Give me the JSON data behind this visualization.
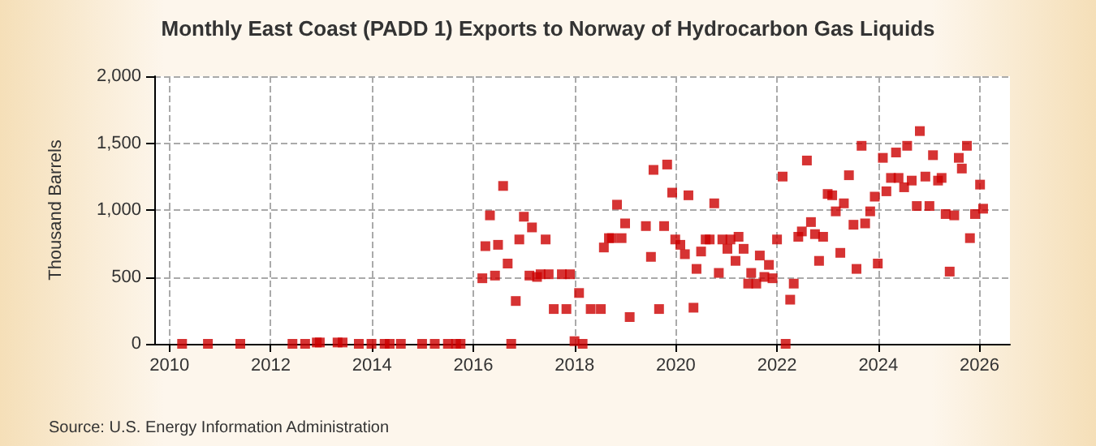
{
  "chart_data": {
    "type": "scatter",
    "title": "Monthly East Coast (PADD 1) Exports to Norway of Hydrocarbon Gas Liquids",
    "ylabel": "Thousand Barrels",
    "annotations": [
      "Source: U.S. Energy Information Administration"
    ],
    "marker": "square",
    "grid": true,
    "xlim": [
      2009.7,
      2026.6
    ],
    "xticks": [
      2010,
      2012,
      2014,
      2016,
      2018,
      2020,
      2022,
      2024,
      2026
    ],
    "ylim": [
      0,
      2000
    ],
    "yticks": [
      0,
      {
        "value": 500,
        "label": "500"
      },
      {
        "value": 1000,
        "label": "1,000"
      },
      {
        "value": 1500,
        "label": "1,500"
      },
      {
        "value": 2000,
        "label": "2,000"
      }
    ],
    "series": [
      {
        "color": "#cc0000",
        "x": [
          2010.25,
          2010.76,
          2011.4,
          2012.43,
          2012.68,
          2012.91,
          2012.97,
          2013.32,
          2013.42,
          2013.74,
          2013.99,
          2014.25,
          2014.35,
          2014.57,
          2014.99,
          2015.24,
          2015.5,
          2015.66,
          2015.75,
          2016.18,
          2016.24,
          2016.33,
          2016.43,
          2016.49,
          2016.59,
          2016.68,
          2016.75,
          2016.84,
          2016.91,
          2017.0,
          2017.11,
          2017.16,
          2017.26,
          2017.33,
          2017.43,
          2017.49,
          2017.59,
          2017.75,
          2017.84,
          2017.91,
          2018.0,
          2018.09,
          2018.16,
          2018.32,
          2018.52,
          2018.58,
          2018.68,
          2018.74,
          2018.84,
          2018.93,
          2019.0,
          2019.09,
          2019.41,
          2019.51,
          2019.56,
          2019.67,
          2019.77,
          2019.83,
          2019.93,
          2019.99,
          2020.09,
          2020.18,
          2020.25,
          2020.35,
          2020.41,
          2020.5,
          2020.59,
          2020.67,
          2020.76,
          2020.85,
          2020.92,
          2021.02,
          2021.08,
          2021.18,
          2021.24,
          2021.34,
          2021.43,
          2021.49,
          2021.59,
          2021.66,
          2021.75,
          2021.84,
          2021.91,
          2022.0,
          2022.11,
          2022.17,
          2022.26,
          2022.33,
          2022.42,
          2022.49,
          2022.59,
          2022.67,
          2022.75,
          2022.83,
          2022.91,
          2023.0,
          2023.09,
          2023.16,
          2023.25,
          2023.32,
          2023.42,
          2023.51,
          2023.57,
          2023.67,
          2023.74,
          2023.84,
          2023.93,
          2023.99,
          2024.09,
          2024.16,
          2024.25,
          2024.35,
          2024.4,
          2024.51,
          2024.57,
          2024.66,
          2024.76,
          2024.82,
          2024.93,
          2025.01,
          2025.08,
          2025.18,
          2025.25,
          2025.33,
          2025.41,
          2025.5,
          2025.59,
          2025.65,
          2025.75,
          2025.81,
          2025.91,
          2026.01,
          2026.07
        ],
        "values": [
          0,
          0,
          0,
          0,
          0,
          10,
          10,
          10,
          10,
          0,
          0,
          0,
          0,
          0,
          0,
          0,
          0,
          0,
          0,
          490,
          730,
          960,
          510,
          740,
          1180,
          600,
          0,
          320,
          780,
          950,
          510,
          870,
          500,
          520,
          780,
          520,
          260,
          520,
          260,
          520,
          20,
          380,
          0,
          260,
          260,
          720,
          790,
          790,
          1040,
          790,
          900,
          200,
          880,
          650,
          1300,
          260,
          880,
          1340,
          1130,
          780,
          740,
          670,
          1110,
          270,
          560,
          690,
          780,
          780,
          1050,
          530,
          780,
          710,
          780,
          620,
          800,
          710,
          450,
          530,
          450,
          660,
          500,
          590,
          490,
          780,
          1250,
          0,
          330,
          450,
          800,
          840,
          1370,
          910,
          820,
          620,
          800,
          1120,
          1110,
          990,
          680,
          1050,
          1260,
          890,
          560,
          1480,
          900,
          990,
          1100,
          600,
          1390,
          1140,
          1240,
          1430,
          1240,
          1170,
          1480,
          1220,
          1030,
          1590,
          1250,
          1030,
          1410,
          1220,
          1240,
          970,
          540,
          960,
          1390,
          1310,
          1480,
          790,
          970,
          1190,
          1010
        ]
      }
    ]
  }
}
